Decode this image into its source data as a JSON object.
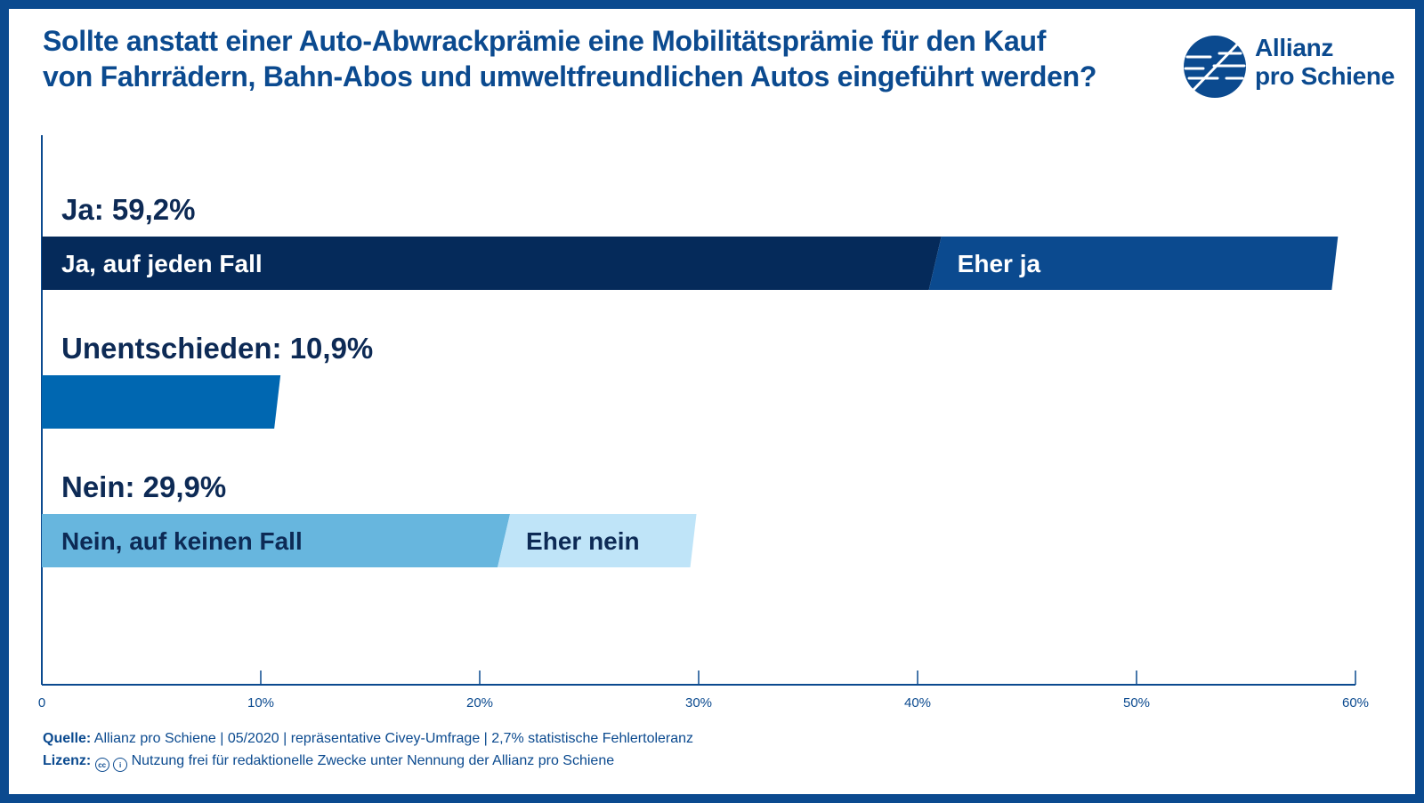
{
  "title": {
    "line1": "Sollte anstatt einer Auto-Abwrackprämie eine Mobilitätsprämie für den Kauf",
    "line2": "von Fahrrädern, Bahn-Abos und umweltfreundlichen Autos eingeführt werden?"
  },
  "logo": {
    "line1": "Allianz",
    "line2": "pro Schiene"
  },
  "colors": {
    "brand": "#0b4a8f",
    "ja_definitely": "#052a5a",
    "ja_rather": "#0b4a8f",
    "undecided": "#0067b1",
    "nein_definitely": "#67b6de",
    "nein_rather": "#bfe4f8"
  },
  "chart_data": {
    "type": "bar",
    "orientation": "horizontal",
    "stacked": true,
    "xlim": [
      0,
      60
    ],
    "ticks": [
      {
        "value": 0,
        "label": "0"
      },
      {
        "value": 10,
        "label": "10%"
      },
      {
        "value": 20,
        "label": "20%"
      },
      {
        "value": 30,
        "label": "30%"
      },
      {
        "value": 40,
        "label": "40%"
      },
      {
        "value": 50,
        "label": "50%"
      },
      {
        "value": 60,
        "label": "60%"
      }
    ],
    "groups": [
      {
        "label": "Ja: 59,2%",
        "total": 59.2,
        "segments": [
          {
            "name": "Ja, auf jeden Fall",
            "value": 40.8,
            "color": "#052a5a",
            "text_color": "#ffffff"
          },
          {
            "name": "Eher ja",
            "value": 18.4,
            "color": "#0b4a8f",
            "text_color": "#ffffff"
          }
        ]
      },
      {
        "label": "Unentschieden: 10,9%",
        "total": 10.9,
        "segments": [
          {
            "name": "",
            "value": 10.9,
            "color": "#0067b1",
            "text_color": "#ffffff"
          }
        ]
      },
      {
        "label": "Nein: 29,9%",
        "total": 29.9,
        "segments": [
          {
            "name": "Nein, auf keinen Fall",
            "value": 21.1,
            "color": "#67b6de",
            "text_color": "#0d2a55"
          },
          {
            "name": "Eher nein",
            "value": 8.8,
            "color": "#bfe4f8",
            "text_color": "#0d2a55"
          }
        ]
      }
    ]
  },
  "footer": {
    "source_key": "Quelle:",
    "source_text": "Allianz pro Schiene | 05/2020 | repräsentative Civey-Umfrage | 2,7% statistische Fehlertoleranz",
    "license_key": "Lizenz:",
    "license_text": "Nutzung frei für redaktionelle Zwecke unter Nennung der Allianz pro Schiene"
  }
}
